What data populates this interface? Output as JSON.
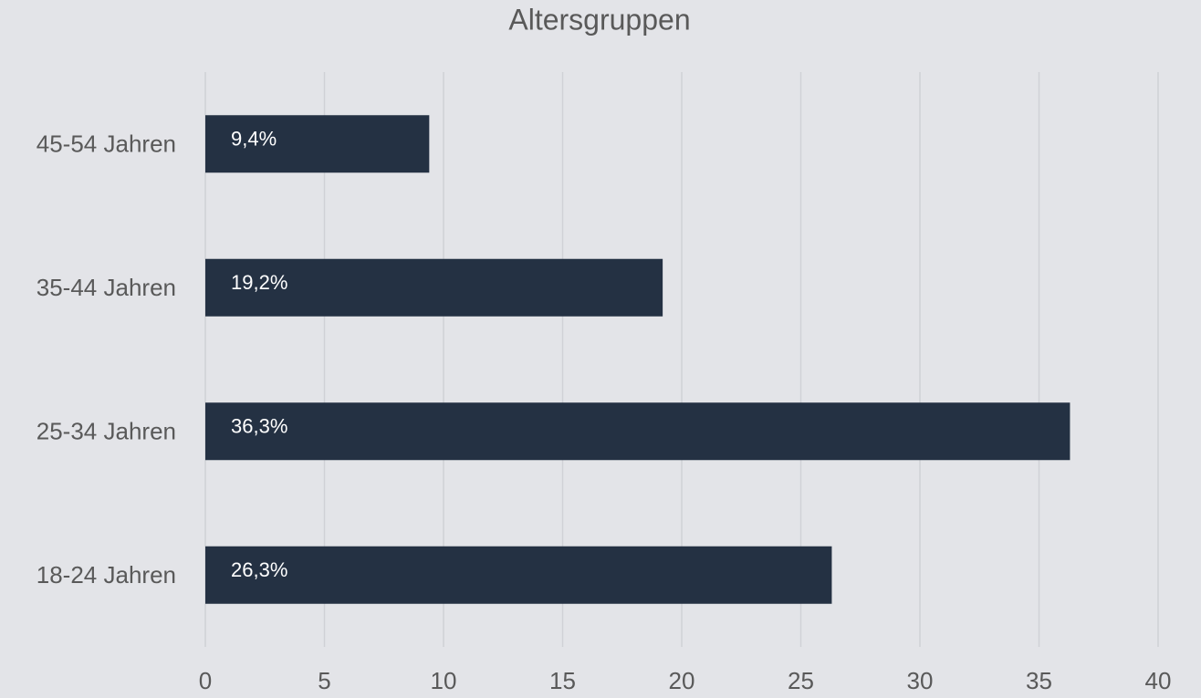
{
  "chart_data": {
    "type": "bar",
    "orientation": "horizontal",
    "title": "Altersgruppen",
    "categories": [
      "18-24 Jahren",
      "25-34 Jahren",
      "35-44 Jahren",
      "45-54 Jahren"
    ],
    "values": [
      26.3,
      36.3,
      19.2,
      9.4
    ],
    "value_labels": [
      "26,3%",
      "36,3%",
      "19,2%",
      "9,4%"
    ],
    "color": "#243143",
    "xlim": [
      0,
      40
    ],
    "xticks": [
      0,
      5,
      10,
      15,
      20,
      25,
      30,
      35,
      40
    ],
    "grid": true
  }
}
